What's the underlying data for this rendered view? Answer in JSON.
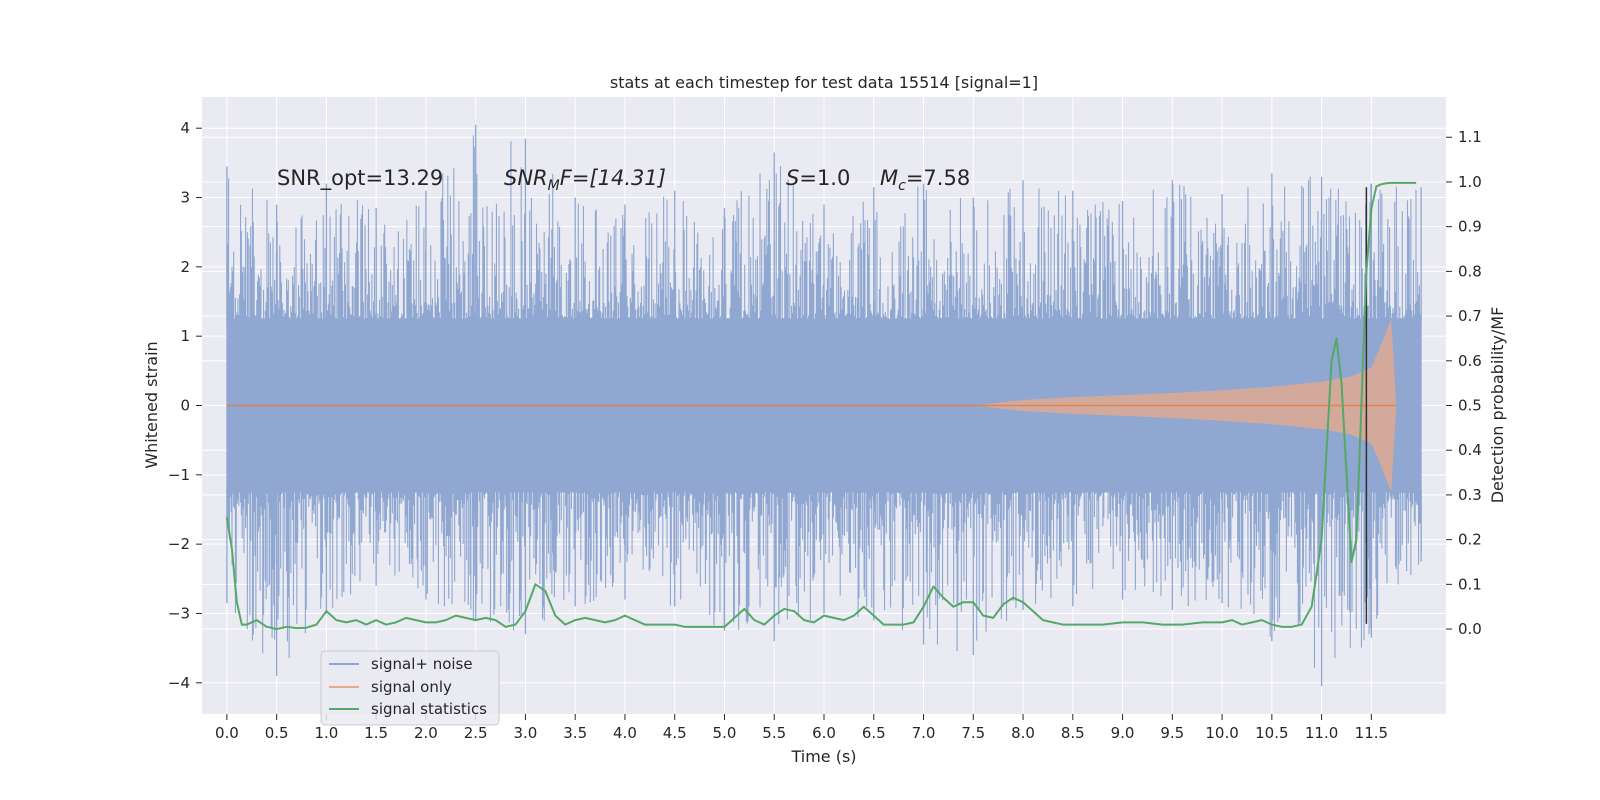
{
  "chart_data": {
    "type": "line",
    "title": "stats at each timestep for test data 15514 [signal=1]",
    "xlabel": "Time (s)",
    "ylabel_left": "Whitened strain",
    "ylabel_right": "Detection probability/MF",
    "xlim": [
      -0.25,
      12.25
    ],
    "ylim_left": [
      -4.45,
      4.45
    ],
    "ylim_right": [
      -0.19,
      1.19
    ],
    "x_ticks": [
      "0.0",
      "0.5",
      "1.0",
      "1.5",
      "2.0",
      "2.5",
      "3.0",
      "3.5",
      "4.0",
      "4.5",
      "5.0",
      "5.5",
      "6.0",
      "6.5",
      "7.0",
      "7.5",
      "8.0",
      "8.5",
      "9.0",
      "9.5",
      "10.0",
      "10.5",
      "11.0",
      "11.5"
    ],
    "x_tick_values": [
      0.0,
      0.5,
      1.0,
      1.5,
      2.0,
      2.5,
      3.0,
      3.5,
      4.0,
      4.5,
      5.0,
      5.5,
      6.0,
      6.5,
      7.0,
      7.5,
      8.0,
      8.5,
      9.0,
      9.5,
      10.0,
      10.5,
      11.0,
      11.5
    ],
    "y_left_ticks": [
      "−4",
      "−3",
      "−2",
      "−1",
      "0",
      "1",
      "2",
      "3",
      "4"
    ],
    "y_left_tick_values": [
      -4,
      -3,
      -2,
      -1,
      0,
      1,
      2,
      3,
      4
    ],
    "y_right_ticks": [
      "0.0",
      "0.1",
      "0.2",
      "0.3",
      "0.4",
      "0.5",
      "0.6",
      "0.7",
      "0.8",
      "0.9",
      "1.0",
      "1.1"
    ],
    "y_right_tick_values": [
      0.0,
      0.1,
      0.2,
      0.3,
      0.4,
      0.5,
      0.6,
      0.7,
      0.8,
      0.9,
      1.0,
      1.1
    ],
    "grid": true,
    "legend_position": "bottom-left",
    "annotations": {
      "snr_opt": "SNR_opt=13.29",
      "snr_mf_base": "SNR",
      "snr_mf_sub": "M",
      "snr_mf_rest": "F=[14.31]",
      "s_sym": "S",
      "s_val": "=1.0",
      "mc_sym": "M",
      "mc_sub": "c",
      "mc_val": "=7.58"
    },
    "series": [
      {
        "name": "signal+ noise",
        "axis": "left",
        "color": "#8fa7d1",
        "x_range": [
          0.0,
          12.0
        ],
        "envelope": {
          "x": [
            0.0,
            0.5,
            1.0,
            1.5,
            2.0,
            2.5,
            3.0,
            3.5,
            4.0,
            4.5,
            5.0,
            5.5,
            6.0,
            6.5,
            7.0,
            7.5,
            8.0,
            8.5,
            9.0,
            9.5,
            10.0,
            10.5,
            11.0,
            11.5,
            12.0
          ],
          "upper": [
            3.45,
            2.9,
            3.2,
            2.85,
            3.1,
            4.05,
            3.85,
            3.0,
            2.9,
            3.1,
            2.85,
            3.65,
            2.9,
            3.15,
            3.2,
            3.0,
            3.25,
            3.1,
            2.95,
            3.25,
            3.05,
            3.35,
            3.3,
            3.2,
            3.15
          ],
          "lower": [
            -2.85,
            -3.9,
            -3.0,
            -2.6,
            -2.8,
            -3.1,
            -3.3,
            -2.9,
            -2.8,
            -2.9,
            -3.25,
            -3.4,
            -3.0,
            -3.1,
            -3.45,
            -3.6,
            -2.95,
            -2.9,
            -2.8,
            -2.95,
            -2.85,
            -3.4,
            -4.05,
            -3.35,
            -2.25
          ]
        }
      },
      {
        "name": "signal only",
        "axis": "left",
        "color": "#dd8452",
        "envelope": {
          "x": [
            0.0,
            7.5,
            8.0,
            8.5,
            9.0,
            9.5,
            10.0,
            10.5,
            11.0,
            11.3,
            11.5,
            11.62,
            11.7,
            11.75
          ],
          "amplitude": [
            0.0,
            0.0,
            0.08,
            0.12,
            0.15,
            0.18,
            0.22,
            0.27,
            0.34,
            0.42,
            0.55,
            0.95,
            1.25,
            0.0
          ]
        }
      },
      {
        "name": "signal statistics",
        "axis": "right",
        "color": "#55a868",
        "x": [
          0.0,
          0.05,
          0.1,
          0.15,
          0.2,
          0.3,
          0.4,
          0.5,
          0.6,
          0.7,
          0.8,
          0.9,
          1.0,
          1.1,
          1.2,
          1.3,
          1.4,
          1.5,
          1.6,
          1.7,
          1.8,
          1.9,
          2.0,
          2.1,
          2.2,
          2.3,
          2.4,
          2.5,
          2.6,
          2.7,
          2.8,
          2.9,
          3.0,
          3.1,
          3.2,
          3.3,
          3.4,
          3.5,
          3.6,
          3.7,
          3.8,
          3.9,
          4.0,
          4.1,
          4.2,
          4.3,
          4.4,
          4.5,
          4.6,
          4.8,
          5.0,
          5.2,
          5.3,
          5.4,
          5.5,
          5.6,
          5.7,
          5.8,
          5.9,
          6.0,
          6.1,
          6.2,
          6.3,
          6.4,
          6.5,
          6.6,
          6.7,
          6.8,
          6.9,
          7.0,
          7.1,
          7.2,
          7.3,
          7.4,
          7.5,
          7.6,
          7.7,
          7.8,
          7.9,
          8.0,
          8.1,
          8.2,
          8.3,
          8.4,
          8.6,
          8.8,
          9.0,
          9.2,
          9.4,
          9.6,
          9.8,
          10.0,
          10.1,
          10.2,
          10.3,
          10.4,
          10.5,
          10.6,
          10.7,
          10.8,
          10.9,
          11.0,
          11.05,
          11.1,
          11.15,
          11.2,
          11.25,
          11.3,
          11.35,
          11.4,
          11.45,
          11.5,
          11.55,
          11.6,
          11.65,
          11.7,
          11.8,
          11.9,
          11.95
        ],
        "y": [
          0.25,
          0.18,
          0.06,
          0.01,
          0.01,
          0.02,
          0.005,
          0.0,
          0.005,
          0.002,
          0.003,
          0.01,
          0.04,
          0.02,
          0.015,
          0.02,
          0.01,
          0.02,
          0.01,
          0.015,
          0.025,
          0.02,
          0.015,
          0.015,
          0.02,
          0.03,
          0.025,
          0.02,
          0.025,
          0.02,
          0.005,
          0.01,
          0.04,
          0.1,
          0.085,
          0.03,
          0.01,
          0.02,
          0.025,
          0.02,
          0.015,
          0.02,
          0.03,
          0.02,
          0.01,
          0.01,
          0.01,
          0.01,
          0.005,
          0.005,
          0.005,
          0.045,
          0.02,
          0.01,
          0.03,
          0.045,
          0.04,
          0.02,
          0.015,
          0.03,
          0.025,
          0.02,
          0.03,
          0.05,
          0.03,
          0.01,
          0.01,
          0.01,
          0.015,
          0.05,
          0.095,
          0.07,
          0.05,
          0.06,
          0.06,
          0.03,
          0.025,
          0.055,
          0.07,
          0.06,
          0.04,
          0.02,
          0.015,
          0.01,
          0.01,
          0.01,
          0.015,
          0.015,
          0.01,
          0.01,
          0.015,
          0.015,
          0.02,
          0.01,
          0.015,
          0.02,
          0.01,
          0.005,
          0.005,
          0.01,
          0.05,
          0.2,
          0.4,
          0.6,
          0.65,
          0.55,
          0.35,
          0.15,
          0.2,
          0.5,
          0.8,
          0.94,
          0.99,
          0.995,
          0.997,
          0.998,
          0.998,
          0.998,
          0.998
        ]
      },
      {
        "name": "",
        "axis": "left",
        "color": "#303030",
        "type": "vline",
        "x": 11.45,
        "y_range": [
          -3.15,
          3.15
        ]
      }
    ]
  }
}
